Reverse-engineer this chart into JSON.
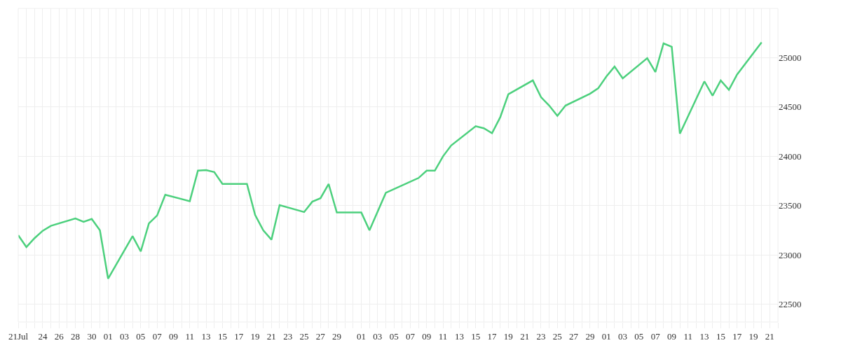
{
  "chart_data": {
    "type": "line",
    "grid": true,
    "marker": "none",
    "line_style": "solid",
    "x": [
      "--07-21",
      "--07-22",
      "--07-23",
      "--07-24",
      "--07-25",
      "--07-28",
      "--07-29",
      "--07-30",
      "--07-31",
      "--08-01",
      "--08-04",
      "--08-05",
      "--08-06",
      "--08-07",
      "--08-08",
      "--08-11",
      "--08-12",
      "--08-13",
      "--08-14",
      "--08-15",
      "--08-18",
      "--08-19",
      "--08-20",
      "--08-21",
      "--08-22",
      "--08-25",
      "--08-26",
      "--08-27",
      "--08-28",
      "--08-29",
      "--09-01",
      "--09-02",
      "--09-04",
      "--09-08",
      "--09-09",
      "--09-10",
      "--09-11",
      "--09-12",
      "--09-15",
      "--09-16",
      "--09-17",
      "--09-18",
      "--09-19",
      "--09-22",
      "--09-23",
      "--09-24",
      "--09-25",
      "--09-26",
      "--09-29",
      "--09-30",
      "--10-01",
      "--10-02",
      "--10-03",
      "--10-06",
      "--10-07",
      "--10-08",
      "--10-09",
      "--10-10",
      "--10-13",
      "--10-14",
      "--10-15",
      "--10-16",
      "--10-17",
      "--10-20"
    ],
    "series": [
      {
        "color": "#4cd07d",
        "values": [
          23200,
          23080,
          23170,
          23245,
          23295,
          23370,
          23335,
          23365,
          23250,
          22760,
          23190,
          23035,
          23320,
          23400,
          23610,
          23545,
          23855,
          23860,
          23840,
          23720,
          23720,
          23405,
          23250,
          23155,
          23505,
          23435,
          23540,
          23575,
          23720,
          23430,
          23430,
          23250,
          23630,
          23780,
          23855,
          23855,
          24000,
          24110,
          24305,
          24285,
          24235,
          24395,
          24630,
          24770,
          24600,
          24515,
          24410,
          24515,
          24635,
          24690,
          24810,
          24910,
          24790,
          24995,
          24855,
          25145,
          25110,
          24230,
          24760,
          24615,
          24770,
          24675,
          24830,
          25155
        ]
      }
    ],
    "xlim": [
      "--07-21",
      "--10-22"
    ],
    "ylim": [
      22320,
      25500
    ],
    "yticks": [
      22500,
      23000,
      23500,
      24000,
      24500,
      25000
    ],
    "xticks": [
      {
        "value": "--07-21",
        "label": "21Jul"
      },
      {
        "value": "--07-22",
        "label": null
      },
      {
        "value": "--07-23",
        "label": null
      },
      {
        "value": "--07-24",
        "label": "24"
      },
      {
        "value": "--07-25",
        "label": null
      },
      {
        "value": "--07-26",
        "label": "26"
      },
      {
        "value": "--07-27",
        "label": null
      },
      {
        "value": "--07-28",
        "label": "28"
      },
      {
        "value": "--07-29",
        "label": null
      },
      {
        "value": "--07-30",
        "label": "30"
      },
      {
        "value": "--07-31",
        "label": null
      },
      {
        "value": "--08-01",
        "label": "01"
      },
      {
        "value": "--08-02",
        "label": null
      },
      {
        "value": "--08-03",
        "label": "03"
      },
      {
        "value": "--08-04",
        "label": null
      },
      {
        "value": "--08-05",
        "label": "05"
      },
      {
        "value": "--08-06",
        "label": null
      },
      {
        "value": "--08-07",
        "label": "07"
      },
      {
        "value": "--08-08",
        "label": null
      },
      {
        "value": "--08-09",
        "label": "09"
      },
      {
        "value": "--08-10",
        "label": null
      },
      {
        "value": "--08-11",
        "label": "11"
      },
      {
        "value": "--08-12",
        "label": null
      },
      {
        "value": "--08-13",
        "label": "13"
      },
      {
        "value": "--08-14",
        "label": null
      },
      {
        "value": "--08-15",
        "label": "15"
      },
      {
        "value": "--08-16",
        "label": null
      },
      {
        "value": "--08-17",
        "label": "17"
      },
      {
        "value": "--08-18",
        "label": null
      },
      {
        "value": "--08-19",
        "label": "19"
      },
      {
        "value": "--08-20",
        "label": null
      },
      {
        "value": "--08-21",
        "label": "21"
      },
      {
        "value": "--08-22",
        "label": null
      },
      {
        "value": "--08-23",
        "label": "23"
      },
      {
        "value": "--08-24",
        "label": null
      },
      {
        "value": "--08-25",
        "label": "25"
      },
      {
        "value": "--08-26",
        "label": null
      },
      {
        "value": "--08-27",
        "label": "27"
      },
      {
        "value": "--08-28",
        "label": null
      },
      {
        "value": "--08-29",
        "label": "29"
      },
      {
        "value": "--08-30",
        "label": null
      },
      {
        "value": "--08-31",
        "label": null
      },
      {
        "value": "--09-01",
        "label": "01"
      },
      {
        "value": "--09-02",
        "label": null
      },
      {
        "value": "--09-03",
        "label": "03"
      },
      {
        "value": "--09-04",
        "label": null
      },
      {
        "value": "--09-05",
        "label": "05"
      },
      {
        "value": "--09-06",
        "label": null
      },
      {
        "value": "--09-07",
        "label": "07"
      },
      {
        "value": "--09-08",
        "label": null
      },
      {
        "value": "--09-09",
        "label": "09"
      },
      {
        "value": "--09-10",
        "label": null
      },
      {
        "value": "--09-11",
        "label": "11"
      },
      {
        "value": "--09-12",
        "label": null
      },
      {
        "value": "--09-13",
        "label": "13"
      },
      {
        "value": "--09-14",
        "label": null
      },
      {
        "value": "--09-15",
        "label": "15"
      },
      {
        "value": "--09-16",
        "label": null
      },
      {
        "value": "--09-17",
        "label": "17"
      },
      {
        "value": "--09-18",
        "label": null
      },
      {
        "value": "--09-19",
        "label": "19"
      },
      {
        "value": "--09-20",
        "label": null
      },
      {
        "value": "--09-21",
        "label": "21"
      },
      {
        "value": "--09-22",
        "label": null
      },
      {
        "value": "--09-23",
        "label": "23"
      },
      {
        "value": "--09-24",
        "label": null
      },
      {
        "value": "--09-25",
        "label": "25"
      },
      {
        "value": "--09-26",
        "label": null
      },
      {
        "value": "--09-27",
        "label": "27"
      },
      {
        "value": "--09-28",
        "label": null
      },
      {
        "value": "--09-29",
        "label": "29"
      },
      {
        "value": "--09-30",
        "label": null
      },
      {
        "value": "--10-01",
        "label": "01"
      },
      {
        "value": "--10-02",
        "label": null
      },
      {
        "value": "--10-03",
        "label": "03"
      },
      {
        "value": "--10-04",
        "label": null
      },
      {
        "value": "--10-05",
        "label": "05"
      },
      {
        "value": "--10-06",
        "label": null
      },
      {
        "value": "--10-07",
        "label": "07"
      },
      {
        "value": "--10-08",
        "label": null
      },
      {
        "value": "--10-09",
        "label": "09"
      },
      {
        "value": "--10-10",
        "label": null
      },
      {
        "value": "--10-11",
        "label": "11"
      },
      {
        "value": "--10-12",
        "label": null
      },
      {
        "value": "--10-13",
        "label": "13"
      },
      {
        "value": "--10-14",
        "label": null
      },
      {
        "value": "--10-15",
        "label": "15"
      },
      {
        "value": "--10-16",
        "label": null
      },
      {
        "value": "--10-17",
        "label": "17"
      },
      {
        "value": "--10-18",
        "label": null
      },
      {
        "value": "--10-19",
        "label": "19"
      },
      {
        "value": "--10-20",
        "label": null
      },
      {
        "value": "--10-21",
        "label": "21"
      },
      {
        "value": "--10-22",
        "label": null
      }
    ]
  }
}
